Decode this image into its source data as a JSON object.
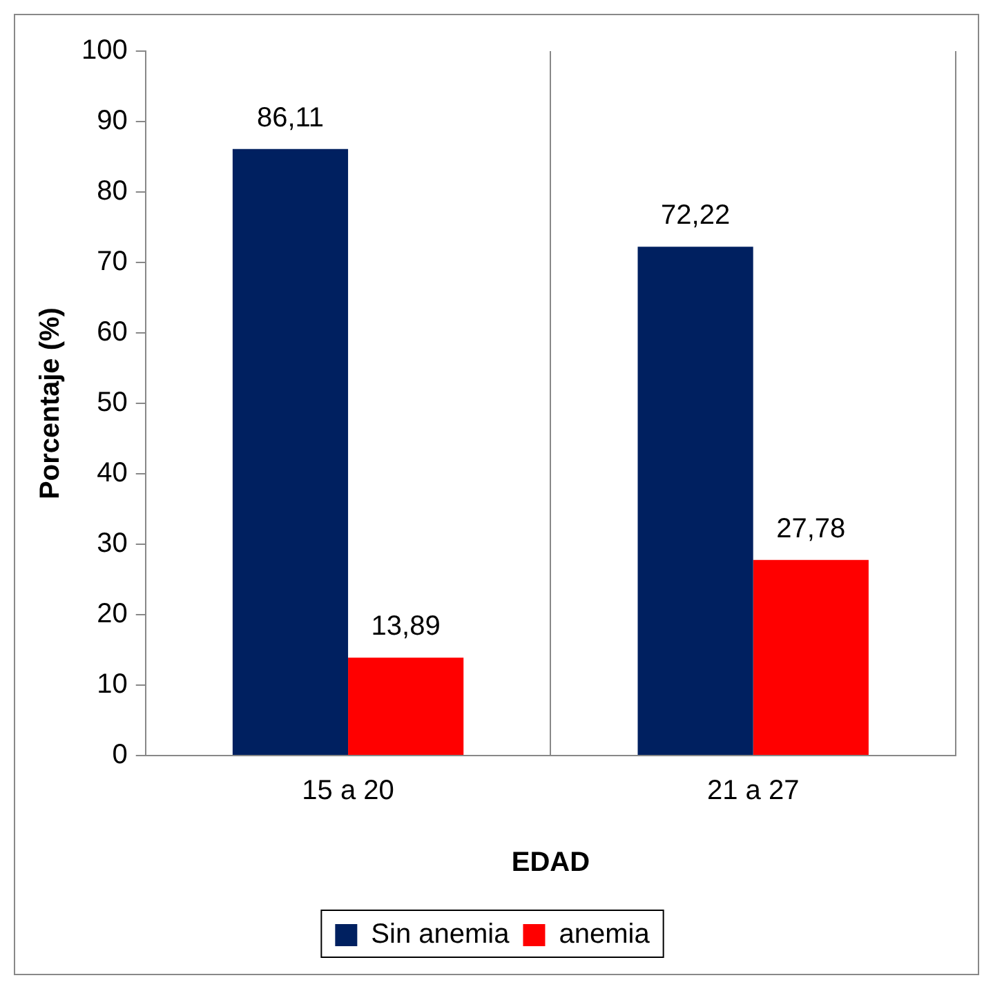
{
  "chart_data": {
    "type": "bar",
    "xlabel": "EDAD",
    "ylabel": "Porcentaje (%)",
    "categories": [
      "15 a 20",
      "21 a 27"
    ],
    "series": [
      {
        "name": "Sin anemia",
        "color": "#002060",
        "values": [
          86.11,
          72.22
        ],
        "value_labels": [
          "86,11",
          "72,22"
        ]
      },
      {
        "name": "anemia",
        "color": "#ff0000",
        "values": [
          13.89,
          27.78
        ],
        "value_labels": [
          "13,89",
          "27,78"
        ]
      }
    ],
    "ylim": [
      0,
      100
    ],
    "yticks": [
      0,
      10,
      20,
      30,
      40,
      50,
      60,
      70,
      80,
      90,
      100
    ],
    "grid": "x",
    "legend": "bottom"
  }
}
